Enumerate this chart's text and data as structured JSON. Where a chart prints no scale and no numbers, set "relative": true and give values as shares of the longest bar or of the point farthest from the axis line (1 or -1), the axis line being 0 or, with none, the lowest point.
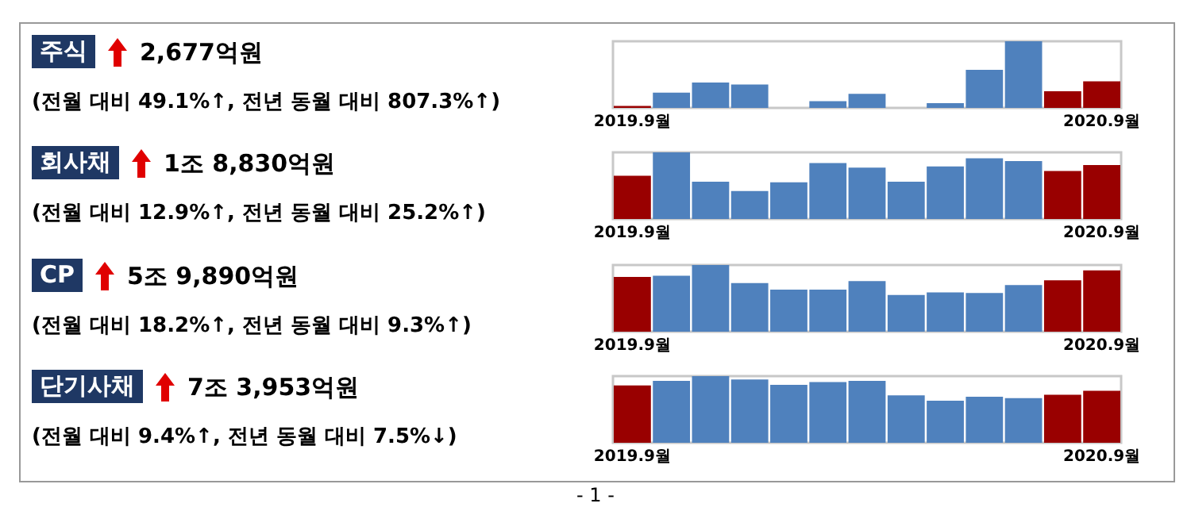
{
  "chart_data": [
    {
      "type": "bar",
      "annotations": [
        "주식",
        "2,677억원",
        "(전월 대비 49.1%↑, 전년 동월 대비 807.3%↑)"
      ],
      "relative": true,
      "tick_labels": "x",
      "categories": [
        "2019.9월",
        null,
        null,
        null,
        null,
        null,
        null,
        null,
        null,
        null,
        null,
        null,
        "2020.9월"
      ],
      "values": [
        0.03,
        0.23,
        0.38,
        0.35,
        0,
        0.1,
        0.21,
        0,
        0.07,
        0.57,
        1,
        0.25,
        0.4
      ],
      "colors": [
        "#990000",
        "#4f81bd",
        "#4f81bd",
        "#4f81bd",
        "#4f81bd",
        "#4f81bd",
        "#4f81bd",
        "#4f81bd",
        "#4f81bd",
        "#4f81bd",
        "#4f81bd",
        "#990000",
        "#990000"
      ]
    },
    {
      "type": "bar",
      "annotations": [
        "회사채",
        "1조 8,830억원",
        "(전월 대비 12.9%↑, 전년 동월 대비 25.2%↑)"
      ],
      "relative": true,
      "tick_labels": "x",
      "categories": [
        "2019.9월",
        null,
        null,
        null,
        null,
        null,
        null,
        null,
        null,
        null,
        null,
        null,
        "2020.9월"
      ],
      "values": [
        0.65,
        1,
        0.56,
        0.42,
        0.55,
        0.84,
        0.77,
        0.56,
        0.79,
        0.91,
        0.87,
        0.72,
        0.81
      ],
      "colors": [
        "#990000",
        "#4f81bd",
        "#4f81bd",
        "#4f81bd",
        "#4f81bd",
        "#4f81bd",
        "#4f81bd",
        "#4f81bd",
        "#4f81bd",
        "#4f81bd",
        "#4f81bd",
        "#990000",
        "#990000"
      ]
    },
    {
      "type": "bar",
      "annotations": [
        "CP",
        "5조 9,890억원",
        "(전월 대비 18.2%↑, 전년 동월 대비 9.3%↑)"
      ],
      "relative": true,
      "tick_labels": "x",
      "categories": [
        "2019.9월",
        null,
        null,
        null,
        null,
        null,
        null,
        null,
        null,
        null,
        null,
        null,
        "2020.9월"
      ],
      "values": [
        0.82,
        0.84,
        1,
        0.73,
        0.63,
        0.63,
        0.76,
        0.55,
        0.59,
        0.58,
        0.7,
        0.77,
        0.92
      ],
      "colors": [
        "#990000",
        "#4f81bd",
        "#4f81bd",
        "#4f81bd",
        "#4f81bd",
        "#4f81bd",
        "#4f81bd",
        "#4f81bd",
        "#4f81bd",
        "#4f81bd",
        "#4f81bd",
        "#990000",
        "#990000"
      ]
    },
    {
      "type": "bar",
      "annotations": [
        "단기사채",
        "7조 3,953억원",
        "(전월 대비 9.4%↑, 전년 동월 대비 7.5%↓)",
        "- 1 -"
      ],
      "relative": true,
      "tick_labels": "x",
      "categories": [
        "2019.9월",
        null,
        null,
        null,
        null,
        null,
        null,
        null,
        null,
        null,
        null,
        null,
        "2020.9월"
      ],
      "values": [
        0.86,
        0.93,
        1,
        0.95,
        0.87,
        0.91,
        0.93,
        0.71,
        0.63,
        0.69,
        0.67,
        0.72,
        0.78
      ],
      "colors": [
        "#990000",
        "#4f81bd",
        "#4f81bd",
        "#4f81bd",
        "#4f81bd",
        "#4f81bd",
        "#4f81bd",
        "#4f81bd",
        "#4f81bd",
        "#4f81bd",
        "#4f81bd",
        "#990000",
        "#990000"
      ]
    }
  ]
}
